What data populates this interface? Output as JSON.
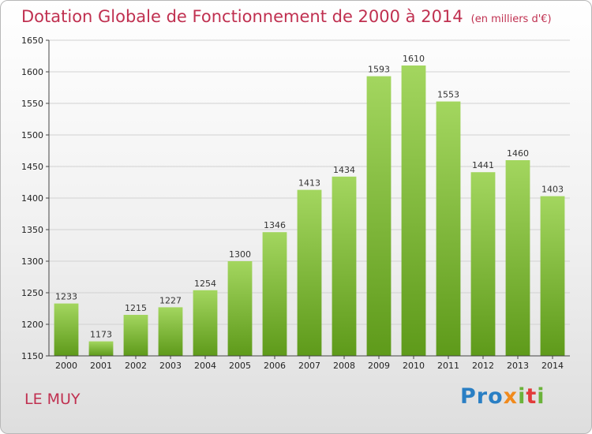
{
  "title": "Dotation Globale de Fonctionnement de 2000 à 2014",
  "unit_note": "(en milliers d'€)",
  "place": "LE MUY",
  "logo": "Proxiti",
  "colors": {
    "title": "#c03050",
    "bar_top": "#9fd35a",
    "bar_bottom": "#5f9a1b"
  },
  "chart_data": {
    "type": "bar",
    "title": "Dotation Globale de Fonctionnement de 2000 à 2014",
    "categories": [
      "2000",
      "2001",
      "2002",
      "2003",
      "2004",
      "2005",
      "2006",
      "2007",
      "2008",
      "2009",
      "2010",
      "2011",
      "2012",
      "2013",
      "2014"
    ],
    "values": [
      1233,
      1173,
      1215,
      1227,
      1254,
      1300,
      1346,
      1413,
      1434,
      1593,
      1610,
      1553,
      1441,
      1460,
      1403
    ],
    "ylim": [
      1150,
      1650
    ],
    "yticks": [
      1150,
      1200,
      1250,
      1300,
      1350,
      1400,
      1450,
      1500,
      1550,
      1600,
      1650
    ],
    "grid": true,
    "xlabel": "",
    "ylabel": ""
  }
}
